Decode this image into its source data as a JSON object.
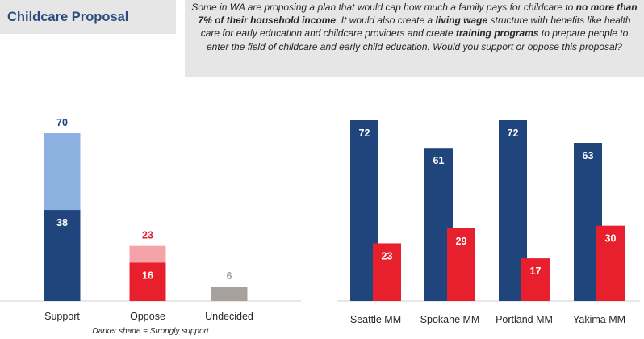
{
  "header": {
    "title": "Childcare Proposal",
    "question_parts": [
      {
        "text": "Some in WA are proposing a plan that would cap how much a family pays for childcare to ",
        "bold": false
      },
      {
        "text": "no more than 7% of their household income",
        "bold": true
      },
      {
        "text": ". It would also create a ",
        "bold": false
      },
      {
        "text": "living wage",
        "bold": true
      },
      {
        "text": " structure with benefits like health care for early education and childcare providers and create ",
        "bold": false
      },
      {
        "text": "training programs",
        "bold": true
      },
      {
        "text": " to prepare people to enter the field of childcare and early child education. Would you support or oppose this proposal?",
        "bold": false
      }
    ]
  },
  "footnote": "Darker shade = Strongly support",
  "colors": {
    "support_strong": "#1f457c",
    "support_light": "#8cb0e0",
    "oppose_strong": "#e8202d",
    "oppose_light": "#f5a3a8",
    "undecided": "#a7a19d",
    "axis": "#d0d0d0"
  },
  "chart_data": [
    {
      "type": "bar",
      "stacked": true,
      "categories": [
        "Support",
        "Oppose",
        "Undecided"
      ],
      "totals": [
        70,
        23,
        6
      ],
      "strong": [
        38,
        16,
        null
      ],
      "ylim": [
        0,
        75
      ]
    },
    {
      "type": "bar",
      "categories": [
        "Seattle MM",
        "Spokane MM",
        "Portland MM",
        "Yakima MM"
      ],
      "series": [
        {
          "values": [
            72,
            61,
            72,
            63
          ],
          "color": "#1f457c"
        },
        {
          "values": [
            23,
            29,
            17,
            30
          ],
          "color": "#e8202d"
        }
      ],
      "ylim": [
        0,
        75
      ]
    }
  ]
}
